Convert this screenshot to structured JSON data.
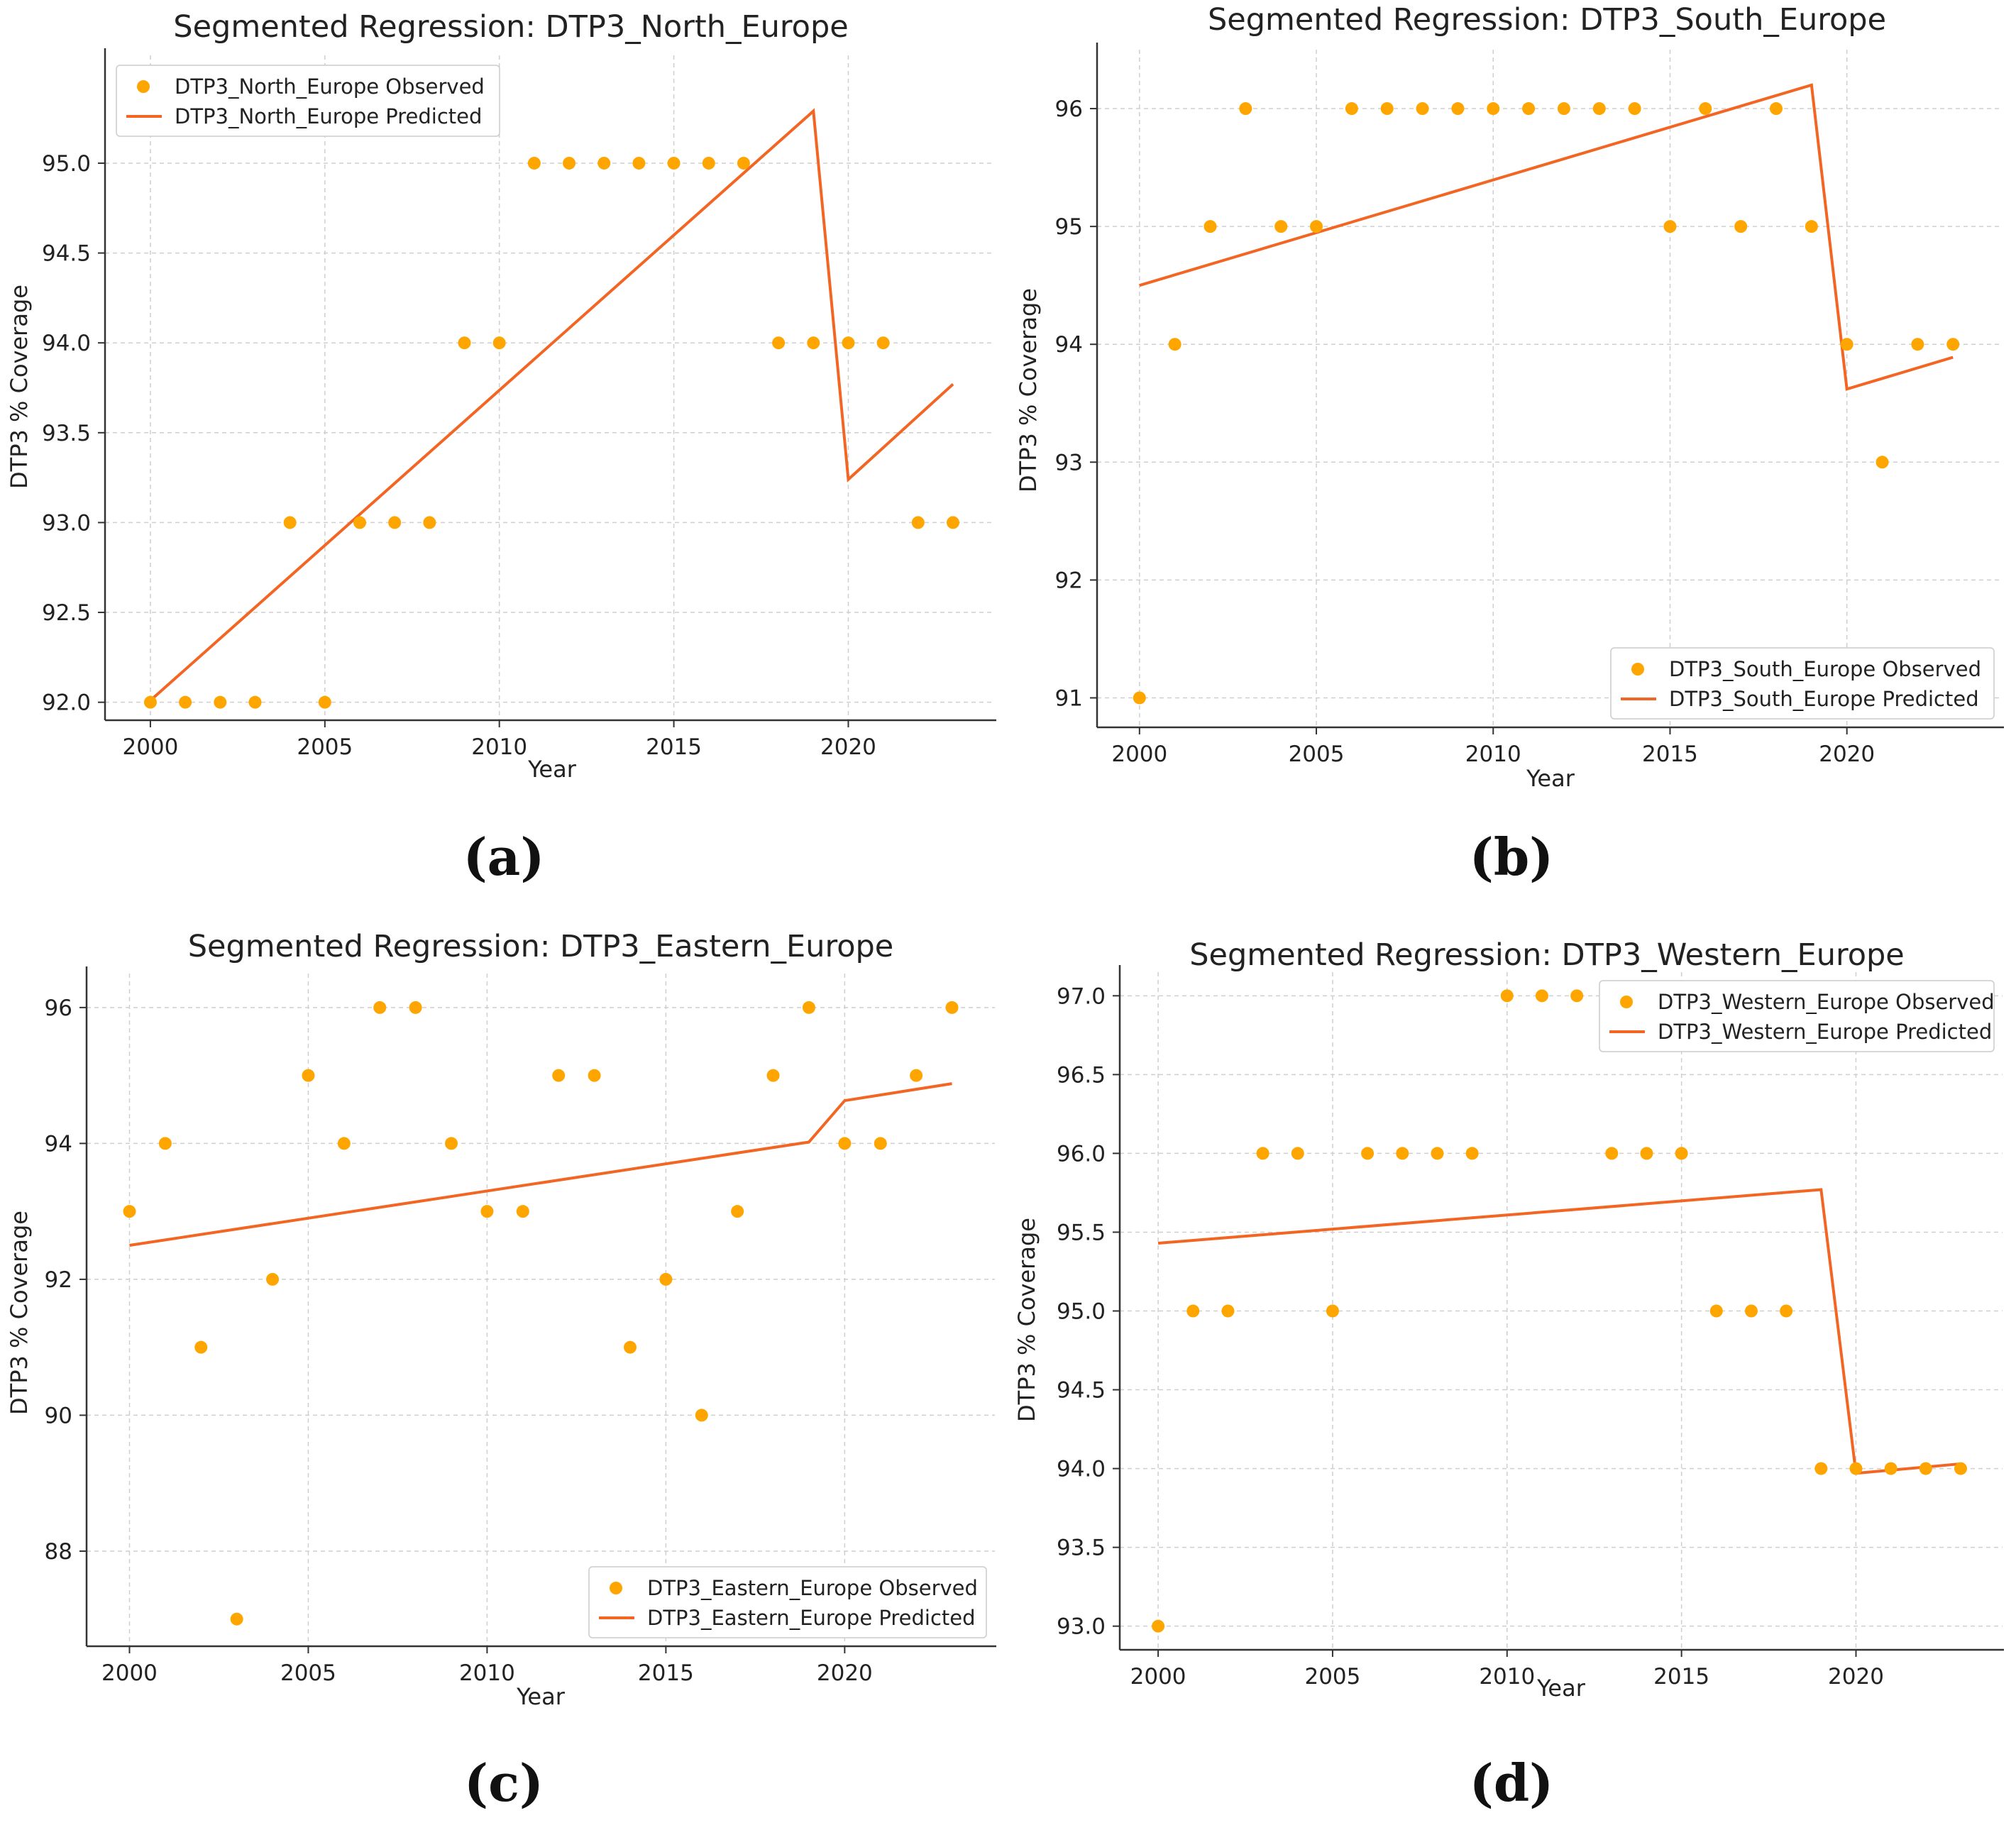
{
  "colors": {
    "observed": "#FFA500",
    "predicted": "#F26522",
    "grid": "#cfcfcf",
    "axis": "#333333"
  },
  "chart_data": [
    {
      "type": "scatter",
      "title": "Segmented Regression: DTP3_North_Europe",
      "xlabel": "Year",
      "ylabel": "DTP3 % Coverage",
      "panel_label": "(a)",
      "xlim": [
        1998.7,
        2024.2
      ],
      "ylim": [
        91.9,
        95.6
      ],
      "xticks": [
        2000,
        2005,
        2010,
        2015,
        2020
      ],
      "xtick_labels": [
        "2000",
        "2005",
        "2010",
        "2015",
        "2020"
      ],
      "yticks": [
        92.0,
        92.5,
        93.0,
        93.5,
        94.0,
        94.5,
        95.0
      ],
      "ytick_labels": [
        "92.0",
        "92.5",
        "93.0",
        "93.5",
        "94.0",
        "94.5",
        "95.0"
      ],
      "legend_position": "top-left",
      "series": [
        {
          "name": "DTP3_North_Europe Observed",
          "kind": "scatter",
          "x": [
            2000,
            2001,
            2002,
            2003,
            2004,
            2005,
            2006,
            2007,
            2008,
            2009,
            2010,
            2011,
            2012,
            2013,
            2014,
            2015,
            2016,
            2017,
            2018,
            2019,
            2020,
            2021,
            2022,
            2023
          ],
          "y": [
            92,
            92,
            92,
            92,
            93,
            92,
            93,
            93,
            93,
            94,
            94,
            95,
            95,
            95,
            95,
            95,
            95,
            95,
            94,
            94,
            94,
            94,
            93,
            93
          ]
        },
        {
          "name": "DTP3_North_Europe Predicted",
          "kind": "line",
          "x": [
            2000,
            2019,
            2020,
            2023
          ],
          "y": [
            92.01,
            95.29,
            93.24,
            93.77
          ]
        }
      ]
    },
    {
      "type": "scatter",
      "title": "Segmented Regression: DTP3_South_Europe",
      "xlabel": "Year",
      "ylabel": "DTP3 % Coverage",
      "panel_label": "(b)",
      "xlim": [
        1998.8,
        2024.4
      ],
      "ylim": [
        90.75,
        96.5
      ],
      "xticks": [
        2000,
        2005,
        2010,
        2015,
        2020
      ],
      "xtick_labels": [
        "2000",
        "2005",
        "2010",
        "2015",
        "2020"
      ],
      "yticks": [
        91,
        92,
        93,
        94,
        95,
        96
      ],
      "ytick_labels": [
        "91",
        "92",
        "93",
        "94",
        "95",
        "96"
      ],
      "legend_position": "bottom-right",
      "series": [
        {
          "name": "DTP3_South_Europe Observed",
          "kind": "scatter",
          "x": [
            2000,
            2001,
            2002,
            2003,
            2004,
            2005,
            2006,
            2007,
            2008,
            2009,
            2010,
            2011,
            2012,
            2013,
            2014,
            2015,
            2016,
            2017,
            2018,
            2019,
            2020,
            2021,
            2022,
            2023
          ],
          "y": [
            91,
            94,
            95,
            96,
            95,
            95,
            96,
            96,
            96,
            96,
            96,
            96,
            96,
            96,
            96,
            95,
            96,
            95,
            96,
            95,
            94,
            93,
            94,
            94
          ]
        },
        {
          "name": "DTP3_South_Europe Predicted",
          "kind": "line",
          "x": [
            2000,
            2019,
            2020,
            2023
          ],
          "y": [
            94.5,
            96.2,
            93.62,
            93.89
          ]
        }
      ]
    },
    {
      "type": "scatter",
      "title": "Segmented Regression: DTP3_Eastern_Europe",
      "xlabel": "Year",
      "ylabel": "DTP3 % Coverage",
      "panel_label": "(c)",
      "xlim": [
        1998.8,
        2024.2
      ],
      "ylim": [
        86.6,
        96.5
      ],
      "xticks": [
        2000,
        2005,
        2010,
        2015,
        2020
      ],
      "xtick_labels": [
        "2000",
        "2005",
        "2010",
        "2015",
        "2020"
      ],
      "yticks": [
        88,
        90,
        92,
        94,
        96
      ],
      "ytick_labels": [
        "88",
        "90",
        "92",
        "94",
        "96"
      ],
      "legend_position": "bottom-right",
      "series": [
        {
          "name": "DTP3_Eastern_Europe Observed",
          "kind": "scatter",
          "x": [
            2000,
            2001,
            2002,
            2003,
            2004,
            2005,
            2006,
            2007,
            2008,
            2009,
            2010,
            2011,
            2012,
            2013,
            2014,
            2015,
            2016,
            2017,
            2018,
            2019,
            2020,
            2021,
            2022,
            2023
          ],
          "y": [
            93,
            94,
            91,
            87,
            92,
            95,
            94,
            96,
            96,
            94,
            93,
            93,
            95,
            95,
            91,
            92,
            90,
            93,
            95,
            96,
            94,
            94,
            95,
            96
          ]
        },
        {
          "name": "DTP3_Eastern_Europe Predicted",
          "kind": "line",
          "x": [
            2000,
            2019,
            2020,
            2023
          ],
          "y": [
            92.5,
            94.02,
            94.63,
            94.88
          ]
        }
      ]
    },
    {
      "type": "scatter",
      "title": "Segmented Regression: DTP3_Western_Europe",
      "xlabel": "Year",
      "ylabel": "DTP3 % Coverage",
      "panel_label": "(d)",
      "xlim": [
        1998.9,
        2024.2
      ],
      "ylim": [
        92.85,
        97.15
      ],
      "xticks": [
        2000,
        2005,
        2010,
        2015,
        2020
      ],
      "xtick_labels": [
        "2000",
        "2005",
        "2010",
        "2015",
        "2020"
      ],
      "yticks": [
        93.0,
        93.5,
        94.0,
        94.5,
        95.0,
        95.5,
        96.0,
        96.5,
        97.0
      ],
      "ytick_labels": [
        "93.0",
        "93.5",
        "94.0",
        "94.5",
        "95.0",
        "95.5",
        "96.0",
        "96.5",
        "97.0"
      ],
      "legend_position": "top-right",
      "series": [
        {
          "name": "DTP3_Western_Europe Observed",
          "kind": "scatter",
          "x": [
            2000,
            2001,
            2002,
            2003,
            2004,
            2005,
            2006,
            2007,
            2008,
            2009,
            2010,
            2011,
            2012,
            2013,
            2014,
            2015,
            2016,
            2017,
            2018,
            2019,
            2020,
            2021,
            2022,
            2023
          ],
          "y": [
            93,
            95,
            95,
            96,
            96,
            95,
            96,
            96,
            96,
            96,
            97,
            97,
            97,
            96,
            96,
            96,
            95,
            95,
            95,
            94,
            94,
            94,
            94,
            94
          ]
        },
        {
          "name": "DTP3_Western_Europe Predicted",
          "kind": "line",
          "x": [
            2000,
            2019,
            2020,
            2023
          ],
          "y": [
            95.43,
            95.77,
            93.97,
            94.03
          ]
        }
      ]
    }
  ]
}
